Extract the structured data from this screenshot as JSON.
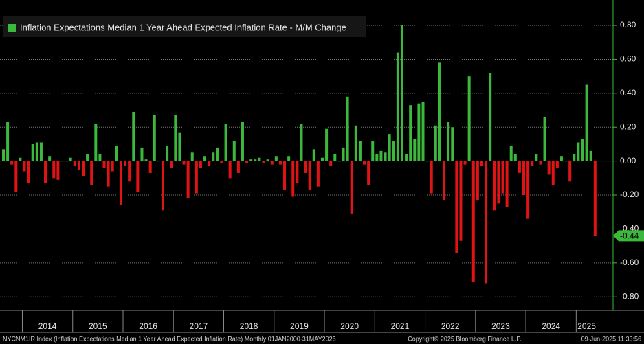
{
  "chart_data": {
    "type": "bar",
    "series": [
      {
        "name": "Inflation Expectations Median 1 Year Ahead Expected Inflation Rate - M/M Change",
        "color": "#3cb83c",
        "negative_color": "#e01414",
        "values": [
          0.07,
          0.23,
          -0.02,
          -0.18,
          0.02,
          -0.06,
          -0.13,
          0.1,
          0.11,
          0.11,
          -0.13,
          0.03,
          -0.1,
          -0.11,
          0.0,
          0.0,
          0.02,
          -0.03,
          -0.05,
          -0.09,
          0.04,
          -0.14,
          0.22,
          0.04,
          -0.04,
          -0.15,
          -0.06,
          0.09,
          -0.26,
          -0.03,
          -0.12,
          0.29,
          -0.18,
          0.08,
          0.01,
          -0.07,
          0.27,
          0.0,
          -0.29,
          0.09,
          -0.04,
          0.27,
          0.17,
          -0.02,
          -0.22,
          0.05,
          -0.19,
          -0.04,
          0.03,
          -0.03,
          0.05,
          0.08,
          -0.01,
          0.22,
          -0.1,
          0.12,
          -0.07,
          0.23,
          -0.01,
          0.01,
          0.01,
          0.02,
          -0.01,
          0.01,
          -0.02,
          0.03,
          -0.02,
          -0.17,
          0.03,
          -0.21,
          -0.13,
          0.22,
          -0.07,
          -0.17,
          0.07,
          -0.15,
          0.02,
          0.19,
          -0.03,
          0.04,
          0.0,
          0.08,
          0.38,
          -0.31,
          0.21,
          0.12,
          -0.02,
          -0.14,
          0.12,
          0.04,
          0.06,
          0.05,
          0.16,
          0.12,
          0.64,
          0.8,
          0.04,
          0.33,
          0.13,
          0.34,
          0.35,
          0.0,
          -0.19,
          0.21,
          0.58,
          -0.23,
          0.23,
          0.2,
          -0.54,
          -0.47,
          -0.02,
          0.5,
          -0.71,
          -0.23,
          -0.03,
          -0.72,
          0.52,
          -0.29,
          -0.25,
          -0.19,
          -0.27,
          0.09,
          0.04,
          -0.07,
          -0.2,
          -0.34,
          -0.03,
          0.04,
          -0.02,
          0.26,
          -0.08,
          -0.14,
          -0.04,
          0.03,
          0.0,
          -0.12,
          0.04,
          0.11,
          0.13,
          0.45,
          0.06,
          -0.44
        ]
      }
    ],
    "x_axis_labels": [
      "2014",
      "2015",
      "2016",
      "2017",
      "2018",
      "2019",
      "2020",
      "2021",
      "2022",
      "2023",
      "2024",
      "2025"
    ],
    "ylim": [
      -0.88,
      0.95
    ],
    "yticks": [
      {
        "value": 0.8,
        "label": "0.80"
      },
      {
        "value": 0.6,
        "label": "0.60"
      },
      {
        "value": 0.4,
        "label": "0.40"
      },
      {
        "value": 0.2,
        "label": "0.20"
      },
      {
        "value": 0,
        "label": "0.00"
      },
      {
        "value": -0.2,
        "label": "-0.20"
      },
      {
        "value": -0.4,
        "label": "-0.40"
      },
      {
        "value": -0.6,
        "label": "-0.60"
      },
      {
        "value": -0.8,
        "label": "-0.80"
      }
    ],
    "grid": true,
    "legend": "top-left",
    "last_value_label": "-0.44",
    "footer": {
      "left": "NYCNM1IR Index (Inflation Expectations Median 1 Year Ahead Expected Inflation Rate)  Monthly 01JAN2000-31MAY2025",
      "center": "Copyright© 2025 Bloomberg Finance L.P.",
      "right": "09-Jun-2025 11:33:56"
    }
  }
}
